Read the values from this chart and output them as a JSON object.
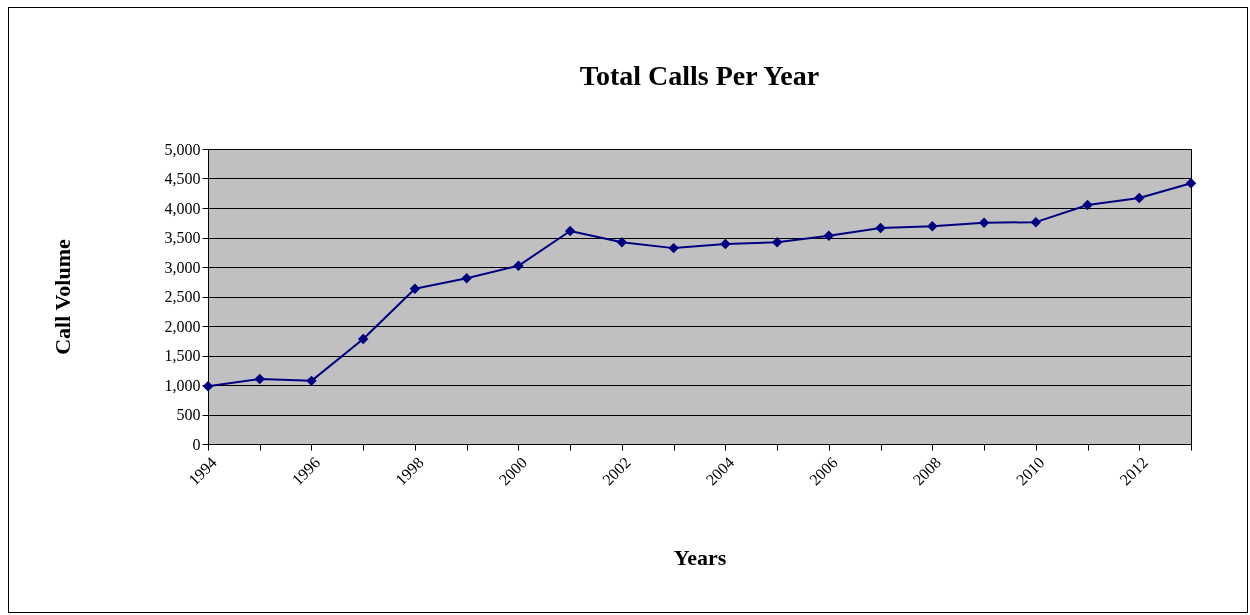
{
  "chart_data": {
    "type": "line",
    "title": "Total Calls Per Year",
    "xlabel": "Years",
    "ylabel": "Call Volume",
    "x": [
      1994,
      1995,
      1996,
      1997,
      1998,
      1999,
      2000,
      2001,
      2002,
      2003,
      2004,
      2005,
      2006,
      2007,
      2008,
      2009,
      2010,
      2011,
      2012,
      2013
    ],
    "series": [
      {
        "color": "#000080",
        "values": [
          980,
          1100,
          1070,
          1780,
          2630,
          2810,
          3020,
          3610,
          3420,
          3320,
          3390,
          3420,
          3530,
          3660,
          3690,
          3750,
          3760,
          4050,
          4170,
          4420
        ]
      }
    ],
    "xlim": [
      1994,
      2013
    ],
    "xticks": [
      1994,
      {
        "value": 1995,
        "label": null
      },
      1996,
      {
        "value": 1997,
        "label": null
      },
      1998,
      {
        "value": 1999,
        "label": null
      },
      2000,
      {
        "value": 2001,
        "label": null
      },
      2002,
      {
        "value": 2003,
        "label": null
      },
      2004,
      {
        "value": 2005,
        "label": null
      },
      2006,
      {
        "value": 2007,
        "label": null
      },
      2008,
      {
        "value": 2009,
        "label": null
      },
      2010,
      {
        "value": 2011,
        "label": null
      },
      2012,
      {
        "value": 2013,
        "label": null
      }
    ],
    "ylim": [
      0,
      5000
    ],
    "yticks": [
      0,
      500,
      {
        "value": 1000,
        "label": "1,000"
      },
      {
        "value": 1500,
        "label": "1,500"
      },
      {
        "value": 2000,
        "label": "2,000"
      },
      {
        "value": 2500,
        "label": "2,500"
      },
      {
        "value": 3000,
        "label": "3,000"
      },
      {
        "value": 3500,
        "label": "3,500"
      },
      {
        "value": 4000,
        "label": "4,000"
      },
      {
        "value": 4500,
        "label": "4,500"
      },
      {
        "value": 5000,
        "label": "5,000"
      }
    ],
    "grid": "y",
    "marker": "diamond",
    "line_style": "solid"
  }
}
